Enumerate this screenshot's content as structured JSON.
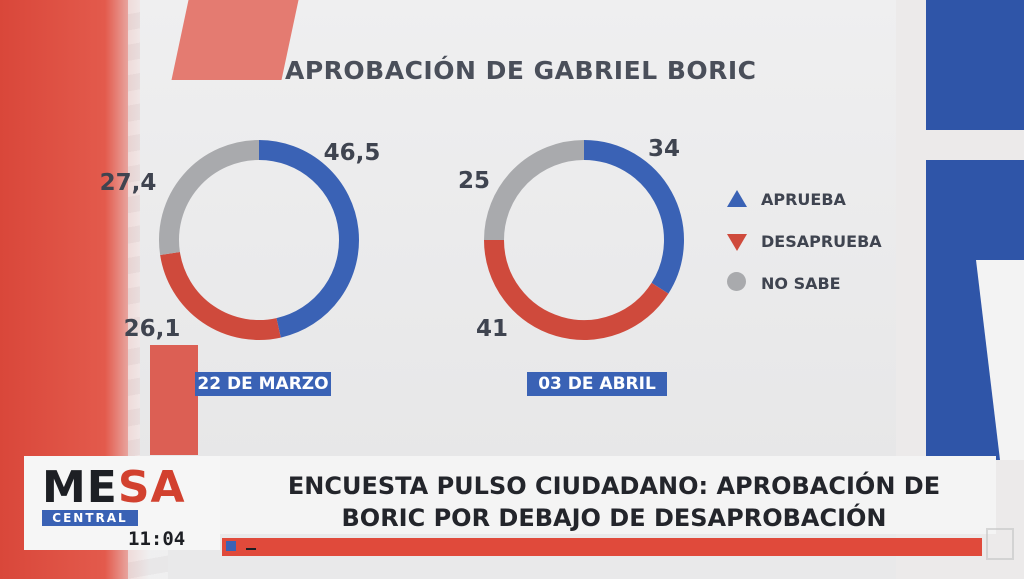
{
  "chart_data": {
    "type": "pie",
    "title": "APROBACIÓN DE GABRIEL BORIC",
    "legend": [
      {
        "label": "APRUEBA",
        "marker": "triangle-up",
        "color": "#3a62b5"
      },
      {
        "label": "DESAPRUEBA",
        "marker": "triangle-down",
        "color": "#cf4a3c"
      },
      {
        "label": "NO SABE",
        "marker": "circle",
        "color": "#a9aaad"
      }
    ],
    "legend_position": "right",
    "charts": [
      {
        "date": "22 DE MARZO",
        "slices": [
          {
            "category": "APRUEBA",
            "value": 46.5,
            "label": "46,5",
            "color": "#3a62b5"
          },
          {
            "category": "DESAPRUEBA",
            "value": 26.1,
            "label": "26,1",
            "color": "#cf4a3c"
          },
          {
            "category": "NO SABE",
            "value": 27.4,
            "label": "27,4",
            "color": "#a9aaad"
          }
        ]
      },
      {
        "date": "03 DE ABRIL",
        "slices": [
          {
            "category": "APRUEBA",
            "value": 34,
            "label": "34",
            "color": "#3a62b5"
          },
          {
            "category": "DESAPRUEBA",
            "value": 41,
            "label": "41",
            "color": "#cf4a3c"
          },
          {
            "category": "NO SABE",
            "value": 25,
            "label": "25",
            "color": "#a9aaad"
          }
        ]
      }
    ]
  },
  "lower_third": {
    "logo_mesa_me": "ME",
    "logo_mesa_sa": "SA",
    "logo_central": "CENTRAL",
    "time": "11:04",
    "headline_line1": "ENCUESTA PULSO CIUDADANO: APROBACIÓN DE",
    "headline_line2": "BORIC POR DEBAJO DE DESAPROBACIÓN"
  }
}
